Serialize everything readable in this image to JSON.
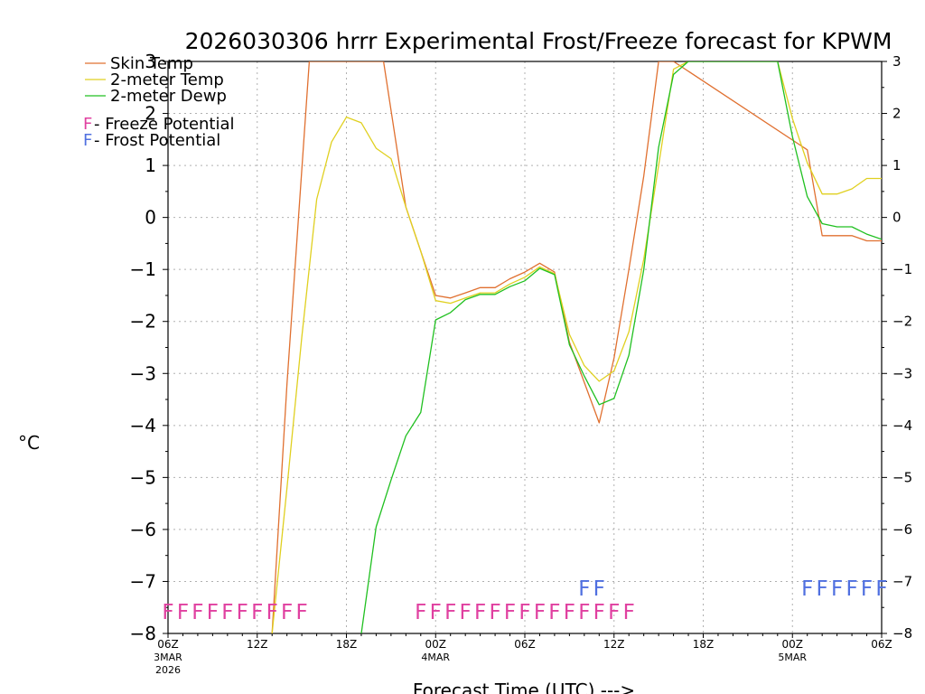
{
  "chart_data": {
    "type": "line",
    "title": "2026030306 hrrr Experimental Frost/Freeze forecast for KPWM",
    "xlabel": "Forecast Time (UTC) --->",
    "ylabel": "°C",
    "xlim": [
      0,
      48
    ],
    "ylim": [
      -8,
      3
    ],
    "y_ticks": [
      -8,
      -7,
      -6,
      -5,
      -4,
      -3,
      -2,
      -1,
      0,
      1,
      2,
      3
    ],
    "y_tick_labels": [
      "−8",
      "−7",
      "−6",
      "−5",
      "−4",
      "−3",
      "−2",
      "−1",
      "0",
      "1",
      "2",
      "3"
    ],
    "x_ticks": [
      {
        "hour": 0,
        "label": "06Z",
        "sub1": "3MAR",
        "sub2": "2026"
      },
      {
        "hour": 6,
        "label": "12Z",
        "sub1": "",
        "sub2": ""
      },
      {
        "hour": 12,
        "label": "18Z",
        "sub1": "",
        "sub2": ""
      },
      {
        "hour": 18,
        "label": "00Z",
        "sub1": "4MAR",
        "sub2": ""
      },
      {
        "hour": 24,
        "label": "06Z",
        "sub1": "",
        "sub2": ""
      },
      {
        "hour": 30,
        "label": "12Z",
        "sub1": "",
        "sub2": ""
      },
      {
        "hour": 36,
        "label": "18Z",
        "sub1": "",
        "sub2": ""
      },
      {
        "hour": 42,
        "label": "00Z",
        "sub1": "5MAR",
        "sub2": ""
      },
      {
        "hour": 48,
        "label": "06Z",
        "sub1": "",
        "sub2": ""
      }
    ],
    "grid": true,
    "legend": {
      "position": "top-left",
      "entries": [
        {
          "label": "Skin Temp",
          "color": "#e07030"
        },
        {
          "label": "2-meter Temp",
          "color": "#e0d020"
        },
        {
          "label": "2-meter Dewp",
          "color": "#20c020"
        }
      ],
      "markers": [
        {
          "letter": "F",
          "text": " - Freeze Potential",
          "color": "#e040a0"
        },
        {
          "letter": "F",
          "text": " - Frost Potential",
          "color": "#5070e0"
        }
      ]
    },
    "series": [
      {
        "name": "Skin Temp",
        "color": "#e07030",
        "x": [
          7,
          8,
          9.5,
          14.5,
          16,
          18,
          19,
          20,
          21,
          22,
          23,
          24,
          25,
          26,
          27,
          29,
          30,
          31,
          32,
          33,
          34,
          43,
          44,
          45,
          46,
          47,
          48
        ],
        "y": [
          -8,
          -3.2,
          3,
          3,
          0.2,
          -1.5,
          -1.55,
          -1.45,
          -1.35,
          -1.35,
          -1.18,
          -1.05,
          -0.88,
          -1.05,
          -2.4,
          -3.95,
          -2.7,
          -1.0,
          0.8,
          3,
          3,
          1.3,
          -0.35,
          -0.35,
          -0.35,
          -0.45,
          -0.45
        ]
      },
      {
        "name": "2-meter Temp",
        "color": "#e0d020",
        "x": [
          7,
          8,
          9,
          10,
          11,
          12,
          13,
          14,
          15,
          16,
          17,
          18,
          19,
          20,
          21,
          22,
          23,
          24,
          25,
          26,
          27,
          28,
          29,
          30,
          31,
          32,
          33,
          34,
          35,
          41,
          42,
          43,
          44,
          45,
          46,
          47,
          48
        ],
        "y": [
          -8,
          -5.2,
          -2.3,
          0.35,
          1.45,
          1.93,
          1.82,
          1.33,
          1.13,
          0.2,
          -0.65,
          -1.6,
          -1.65,
          -1.55,
          -1.45,
          -1.45,
          -1.28,
          -1.15,
          -0.95,
          -1.08,
          -2.25,
          -2.85,
          -3.15,
          -2.95,
          -2.2,
          -0.8,
          1.0,
          2.85,
          3,
          3,
          1.9,
          1.05,
          0.45,
          0.45,
          0.55,
          0.75,
          0.75
        ]
      },
      {
        "name": "2-meter Dewp",
        "color": "#20c020",
        "x": [
          13,
          14,
          15,
          16,
          17,
          18,
          19,
          20,
          21,
          22,
          23,
          24,
          25,
          26,
          27,
          28,
          29,
          30,
          31,
          32,
          33,
          34,
          35,
          41,
          42,
          43,
          44,
          45,
          46,
          47,
          48
        ],
        "y": [
          -8,
          -5.95,
          -5.05,
          -4.2,
          -3.75,
          -1.97,
          -1.83,
          -1.58,
          -1.48,
          -1.48,
          -1.33,
          -1.22,
          -0.98,
          -1.1,
          -2.45,
          -3.05,
          -3.6,
          -3.48,
          -2.65,
          -1.0,
          1.35,
          2.75,
          3,
          3,
          1.55,
          0.4,
          -0.12,
          -0.18,
          -0.18,
          -0.32,
          -0.42
        ]
      }
    ],
    "marker_rows": [
      {
        "name": "Freeze Potential",
        "color": "#e040a0",
        "letter": "F",
        "level": -7.55,
        "hours": [
          0,
          1,
          2,
          3,
          4,
          5,
          6,
          7,
          8,
          9
        ]
      },
      {
        "name": "Freeze Potential",
        "color": "#e040a0",
        "letter": "F",
        "level": -7.55,
        "hours": [
          17,
          18,
          19,
          20,
          21,
          22,
          23,
          24,
          25,
          26,
          27,
          28,
          29,
          30,
          31
        ]
      },
      {
        "name": "Frost Potential",
        "color": "#5070e0",
        "letter": "F",
        "level": -7.1,
        "hours": [
          28,
          29
        ]
      },
      {
        "name": "Frost Potential",
        "color": "#5070e0",
        "letter": "F",
        "level": -7.1,
        "hours": [
          43,
          44,
          45,
          46,
          47,
          48
        ]
      }
    ]
  }
}
